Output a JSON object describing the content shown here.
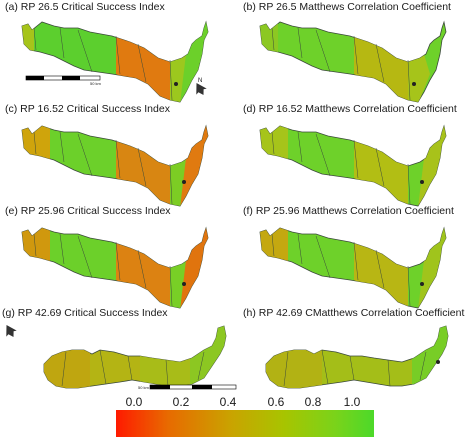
{
  "panels": [
    {
      "id": "a",
      "label": "(a) RP 26.5 Critical Success Index"
    },
    {
      "id": "b",
      "label": "(b) RP 26.5 Matthews Correlation Coefficient"
    },
    {
      "id": "c",
      "label": "(c) RP 16.52 Critical Success Index"
    },
    {
      "id": "d",
      "label": "(d) RP 16.52 Matthews Correlation Coefficient"
    },
    {
      "id": "e",
      "label": "(e) RP 25.96 Critical Success Index"
    },
    {
      "id": "f",
      "label": "(f) RP 25.96 Matthews Correlation Coefficient"
    },
    {
      "id": "g",
      "label": "(g) RP 42.69 Critical Success Index"
    },
    {
      "id": "h",
      "label": "(h) RP 42.69 CMatthews Correlation Coefficient"
    }
  ],
  "scale_bar": {
    "label_top": "50 km",
    "label_bottom": "50 km"
  },
  "north_arrow": {
    "label": "N"
  },
  "legend": {
    "ticks": [
      "0.0",
      "0.2",
      "0.4",
      "0.6",
      "0.8",
      "1.0"
    ],
    "colors": [
      "#ff1a00",
      "#e86a00",
      "#c9a400",
      "#a8c400",
      "#7ad31a",
      "#4cd92a"
    ]
  }
}
